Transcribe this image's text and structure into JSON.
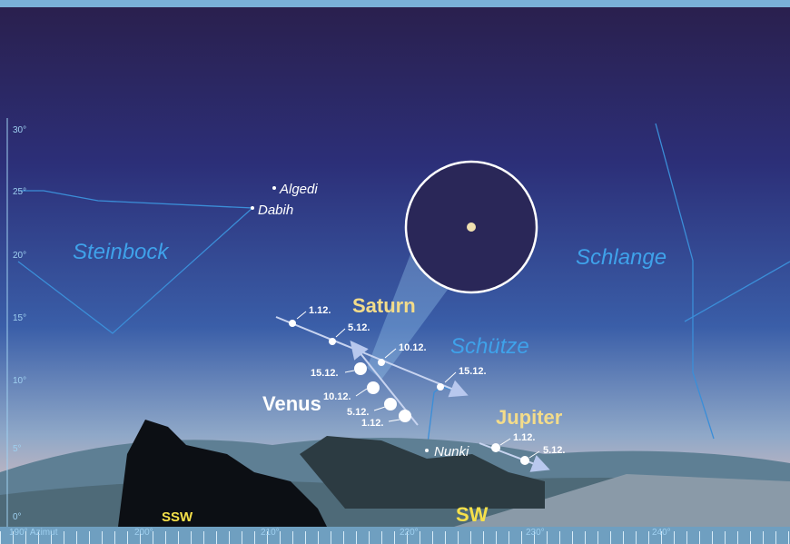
{
  "altitude_scale": {
    "ticks": [
      "0°",
      "5°",
      "10°",
      "15°",
      "20°",
      "25°",
      "30°"
    ]
  },
  "azimuth_scale": {
    "ticks": [
      "190° Azimut",
      "200°",
      "210°",
      "220°",
      "230°",
      "240°"
    ]
  },
  "directions": [
    "SSW",
    "SW"
  ],
  "constellations": [
    "Steinbock",
    "Schütze",
    "Schlange"
  ],
  "stars": [
    "Algedi",
    "Dabih",
    "Nunki"
  ],
  "planets": [
    {
      "name": "Saturn",
      "dates": [
        "1.12.",
        "5.12.",
        "10.12.",
        "15.12."
      ]
    },
    {
      "name": "Venus",
      "dates": [
        "1.12.",
        "5.12.",
        "10.12.",
        "15.12."
      ]
    },
    {
      "name": "Jupiter",
      "dates": [
        "1.12.",
        "5.12."
      ]
    }
  ]
}
